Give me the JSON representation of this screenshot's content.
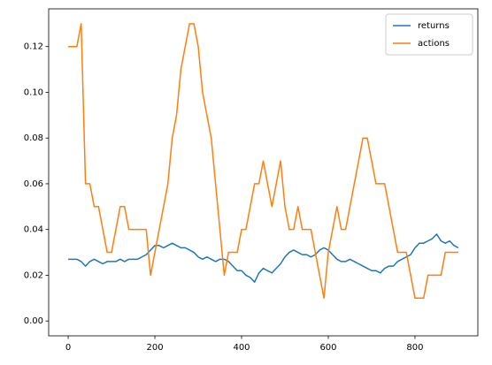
{
  "chart_data": {
    "type": "line",
    "x": [
      0,
      10,
      20,
      30,
      40,
      50,
      60,
      70,
      80,
      90,
      100,
      110,
      120,
      130,
      140,
      150,
      160,
      170,
      180,
      190,
      200,
      210,
      220,
      230,
      240,
      250,
      260,
      270,
      280,
      290,
      300,
      310,
      320,
      330,
      340,
      350,
      360,
      370,
      380,
      390,
      400,
      410,
      420,
      430,
      440,
      450,
      460,
      470,
      480,
      490,
      500,
      510,
      520,
      530,
      540,
      550,
      560,
      570,
      580,
      590,
      600,
      610,
      620,
      630,
      640,
      650,
      660,
      670,
      680,
      690,
      700,
      710,
      720,
      730,
      740,
      750,
      760,
      770,
      780,
      790,
      800,
      810,
      820,
      830,
      840,
      850,
      860,
      870,
      880,
      890,
      900
    ],
    "series": [
      {
        "name": "returns",
        "color": "#1f77b4",
        "values": [
          0.027,
          0.027,
          0.027,
          0.026,
          0.024,
          0.026,
          0.027,
          0.026,
          0.025,
          0.026,
          0.026,
          0.026,
          0.027,
          0.026,
          0.027,
          0.027,
          0.027,
          0.028,
          0.029,
          0.031,
          0.033,
          0.033,
          0.032,
          0.033,
          0.034,
          0.033,
          0.032,
          0.032,
          0.031,
          0.03,
          0.028,
          0.027,
          0.028,
          0.027,
          0.026,
          0.027,
          0.027,
          0.026,
          0.024,
          0.022,
          0.022,
          0.02,
          0.019,
          0.017,
          0.021,
          0.023,
          0.022,
          0.021,
          0.023,
          0.025,
          0.028,
          0.03,
          0.031,
          0.03,
          0.029,
          0.029,
          0.028,
          0.029,
          0.031,
          0.032,
          0.031,
          0.029,
          0.027,
          0.026,
          0.026,
          0.027,
          0.026,
          0.025,
          0.024,
          0.023,
          0.022,
          0.022,
          0.021,
          0.023,
          0.024,
          0.024,
          0.026,
          0.027,
          0.028,
          0.029,
          0.032,
          0.034,
          0.034,
          0.035,
          0.036,
          0.038,
          0.035,
          0.034,
          0.035,
          0.033,
          0.032
        ]
      },
      {
        "name": "actions",
        "color": "#ff7f0e",
        "values": [
          0.12,
          0.12,
          0.12,
          0.13,
          0.06,
          0.06,
          0.05,
          0.05,
          0.04,
          0.03,
          0.03,
          0.04,
          0.05,
          0.05,
          0.04,
          0.04,
          0.04,
          0.04,
          0.04,
          0.02,
          0.03,
          0.04,
          0.05,
          0.06,
          0.08,
          0.09,
          0.11,
          0.12,
          0.13,
          0.13,
          0.12,
          0.1,
          0.09,
          0.08,
          0.06,
          0.04,
          0.02,
          0.03,
          0.03,
          0.03,
          0.04,
          0.04,
          0.05,
          0.06,
          0.06,
          0.07,
          0.06,
          0.05,
          0.06,
          0.07,
          0.05,
          0.04,
          0.04,
          0.05,
          0.04,
          0.04,
          0.04,
          0.03,
          0.02,
          0.01,
          0.03,
          0.04,
          0.05,
          0.04,
          0.04,
          0.05,
          0.06,
          0.07,
          0.08,
          0.08,
          0.07,
          0.06,
          0.06,
          0.06,
          0.05,
          0.04,
          0.03,
          0.03,
          0.03,
          0.02,
          0.01,
          0.01,
          0.01,
          0.02,
          0.02,
          0.02,
          0.02,
          0.03,
          0.03,
          0.03,
          0.03
        ]
      }
    ],
    "xlim": [
      -45,
      945
    ],
    "xticks": [
      0,
      200,
      400,
      600,
      800
    ],
    "ylim": [
      -0.0065,
      0.1365
    ],
    "yticks": [
      {
        "value": 0,
        "label": "0.00"
      },
      {
        "value": 0.02,
        "label": "0.02"
      },
      {
        "value": 0.04,
        "label": "0.04"
      },
      {
        "value": 0.06,
        "label": "0.06"
      },
      {
        "value": 0.08,
        "label": "0.08"
      },
      {
        "value": 0.1,
        "label": "0.10"
      },
      {
        "value": 0.12,
        "label": "0.12"
      }
    ],
    "legend": "upper right"
  }
}
